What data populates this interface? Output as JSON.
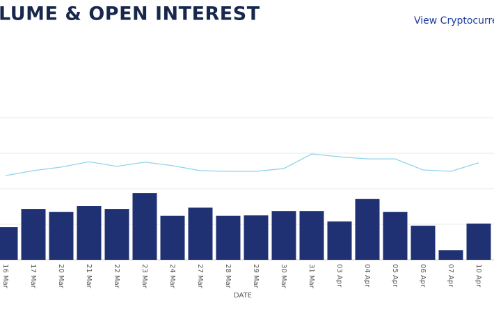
{
  "chart_data": {
    "type": "bar",
    "title": "LUME & OPEN INTEREST",
    "link": "View Cryptocurre",
    "x_label": "DATE",
    "categories": [
      "16 Mar",
      "17 Mar",
      "20 Mar",
      "21 Mar",
      "22 Mar",
      "23 Mar",
      "24 Mar",
      "27 Mar",
      "28 Mar",
      "29 Mar",
      "30 Mar",
      "31 Mar",
      "03 Apr",
      "04 Apr",
      "05 Apr",
      "06 Apr",
      "07 Apr",
      "10 Apr"
    ],
    "series": [
      {
        "type": "bar",
        "color": "#1f3173",
        "values": [
          0.92,
          1.43,
          1.35,
          1.51,
          1.43,
          1.88,
          1.24,
          1.47,
          1.24,
          1.25,
          1.37,
          1.37,
          1.08,
          1.71,
          1.35,
          0.96,
          0.27,
          1.02
        ]
      },
      {
        "type": "line",
        "color": "#8ed4ea",
        "values": [
          2.37,
          2.51,
          2.61,
          2.76,
          2.63,
          2.75,
          2.65,
          2.51,
          2.49,
          2.49,
          2.57,
          2.98,
          2.9,
          2.84,
          2.84,
          2.53,
          2.49,
          2.73
        ]
      }
    ],
    "ylim": [
      0,
      4
    ],
    "yticks": [
      1,
      2,
      3,
      4
    ],
    "grid": true
  }
}
